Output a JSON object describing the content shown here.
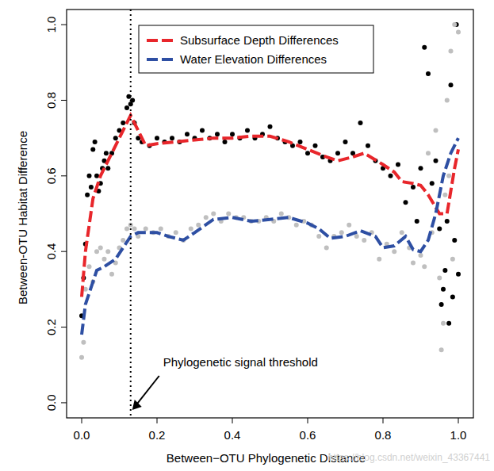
{
  "chart_data": {
    "type": "scatter",
    "xlabel": "Between−OTU Phylogenetic Distance",
    "ylabel": "Between-OTU Habitat Difference",
    "xlim": [
      -0.04,
      1.04
    ],
    "ylim": [
      -0.04,
      1.04
    ],
    "xticks": [
      {
        "value": 0,
        "label": "0.0"
      },
      0.2,
      0.4,
      0.6,
      0.8,
      {
        "value": 1,
        "label": "1.0"
      }
    ],
    "yticks": [
      {
        "value": 0,
        "label": "0.0"
      },
      0.2,
      0.4,
      0.6,
      0.8,
      {
        "value": 1,
        "label": "1.0"
      }
    ],
    "grid": false,
    "legend": "top",
    "annotations": [
      {
        "text": "Phylogenetic signal threshold",
        "x": 0.13
      }
    ],
    "watermark": "https://blog.csdn.net/weixin_43367441",
    "series": [
      {
        "type": "scatter",
        "marker": "circle",
        "color": "#000000",
        "x": [
          0.0,
          0.005,
          0.01,
          0.015,
          0.02,
          0.025,
          0.03,
          0.035,
          0.04,
          0.045,
          0.05,
          0.055,
          0.06,
          0.065,
          0.07,
          0.08,
          0.09,
          0.1,
          0.11,
          0.12,
          0.125,
          0.13,
          0.135,
          0.14,
          0.15,
          0.16,
          0.18,
          0.2,
          0.22,
          0.24,
          0.26,
          0.28,
          0.3,
          0.32,
          0.34,
          0.36,
          0.38,
          0.4,
          0.42,
          0.44,
          0.46,
          0.48,
          0.5,
          0.52,
          0.54,
          0.56,
          0.58,
          0.6,
          0.62,
          0.64,
          0.66,
          0.68,
          0.7,
          0.72,
          0.74,
          0.76,
          0.78,
          0.8,
          0.82,
          0.84,
          0.86,
          0.88,
          0.89,
          0.9,
          0.91,
          0.92,
          0.93,
          0.94,
          0.95,
          0.955,
          0.96,
          0.965,
          0.97,
          0.975,
          0.98,
          0.985,
          0.99,
          0.995,
          1.0
        ],
        "values": [
          0.23,
          0.33,
          0.42,
          0.55,
          0.6,
          0.57,
          0.67,
          0.69,
          0.6,
          0.56,
          0.58,
          0.62,
          0.64,
          0.66,
          0.62,
          0.66,
          0.7,
          0.72,
          0.74,
          0.78,
          0.81,
          0.79,
          0.8,
          0.74,
          0.7,
          0.69,
          0.68,
          0.7,
          0.69,
          0.7,
          0.69,
          0.71,
          0.7,
          0.72,
          0.7,
          0.71,
          0.69,
          0.71,
          0.7,
          0.72,
          0.7,
          0.71,
          0.73,
          0.7,
          0.69,
          0.68,
          0.69,
          0.66,
          0.68,
          0.65,
          0.64,
          0.66,
          0.69,
          0.66,
          0.74,
          0.68,
          0.64,
          0.62,
          0.6,
          0.63,
          0.53,
          0.57,
          0.48,
          0.62,
          0.94,
          0.87,
          0.58,
          0.64,
          0.46,
          0.26,
          0.3,
          0.35,
          0.48,
          0.21,
          0.84,
          0.28,
          0.43,
          1.0,
          0.34
        ]
      },
      {
        "type": "scatter",
        "marker": "circle",
        "color": "#bfbfbf",
        "x": [
          0.0,
          0.005,
          0.01,
          0.02,
          0.03,
          0.04,
          0.05,
          0.06,
          0.07,
          0.08,
          0.09,
          0.1,
          0.11,
          0.12,
          0.13,
          0.14,
          0.15,
          0.17,
          0.19,
          0.21,
          0.23,
          0.25,
          0.27,
          0.29,
          0.31,
          0.33,
          0.35,
          0.37,
          0.39,
          0.41,
          0.43,
          0.45,
          0.47,
          0.49,
          0.51,
          0.53,
          0.55,
          0.57,
          0.59,
          0.61,
          0.63,
          0.65,
          0.67,
          0.69,
          0.71,
          0.73,
          0.75,
          0.77,
          0.79,
          0.81,
          0.83,
          0.85,
          0.87,
          0.88,
          0.9,
          0.91,
          0.92,
          0.93,
          0.94,
          0.95,
          0.955,
          0.96,
          0.965,
          0.97,
          0.975,
          0.98,
          0.985,
          0.99,
          1.0
        ],
        "values": [
          0.12,
          0.16,
          0.3,
          0.36,
          0.32,
          0.4,
          0.41,
          0.38,
          0.4,
          0.34,
          0.37,
          0.41,
          0.43,
          0.46,
          0.47,
          0.46,
          0.44,
          0.46,
          0.45,
          0.46,
          0.44,
          0.45,
          0.43,
          0.46,
          0.47,
          0.49,
          0.5,
          0.48,
          0.5,
          0.49,
          0.49,
          0.48,
          0.48,
          0.49,
          0.48,
          0.5,
          0.49,
          0.47,
          0.48,
          0.47,
          0.44,
          0.41,
          0.44,
          0.45,
          0.47,
          0.44,
          0.43,
          0.45,
          0.38,
          0.42,
          0.4,
          0.45,
          0.41,
          0.37,
          0.39,
          0.36,
          0.66,
          0.45,
          0.72,
          0.33,
          0.14,
          0.21,
          0.55,
          0.8,
          0.6,
          0.93,
          0.38,
          1.0,
          0.98
        ]
      },
      {
        "name": "Subsurface Depth Differences",
        "type": "line",
        "line_style": "dashed",
        "color": "#e8262b",
        "x": [
          0.0,
          0.01,
          0.03,
          0.05,
          0.08,
          0.1,
          0.13,
          0.15,
          0.17,
          0.2,
          0.25,
          0.3,
          0.35,
          0.4,
          0.45,
          0.5,
          0.55,
          0.6,
          0.65,
          0.68,
          0.72,
          0.75,
          0.8,
          0.83,
          0.85,
          0.88,
          0.9,
          0.92,
          0.95,
          0.97,
          0.99,
          1.0
        ],
        "values": [
          0.28,
          0.4,
          0.54,
          0.6,
          0.66,
          0.7,
          0.76,
          0.72,
          0.68,
          0.685,
          0.69,
          0.695,
          0.7,
          0.7,
          0.705,
          0.705,
          0.69,
          0.67,
          0.65,
          0.64,
          0.65,
          0.66,
          0.63,
          0.61,
          0.585,
          0.58,
          0.575,
          0.55,
          0.5,
          0.5,
          0.62,
          0.67
        ]
      },
      {
        "name": "Water Elevation Differences",
        "type": "line",
        "line_style": "dashed",
        "color": "#2e4fa3",
        "x": [
          0.0,
          0.01,
          0.04,
          0.06,
          0.09,
          0.11,
          0.13,
          0.15,
          0.2,
          0.23,
          0.27,
          0.3,
          0.35,
          0.4,
          0.45,
          0.5,
          0.55,
          0.6,
          0.63,
          0.66,
          0.7,
          0.74,
          0.78,
          0.8,
          0.83,
          0.86,
          0.88,
          0.9,
          0.92,
          0.94,
          0.96,
          0.98,
          1.0
        ],
        "values": [
          0.18,
          0.26,
          0.35,
          0.36,
          0.38,
          0.41,
          0.44,
          0.45,
          0.45,
          0.44,
          0.43,
          0.45,
          0.485,
          0.49,
          0.48,
          0.485,
          0.49,
          0.475,
          0.46,
          0.435,
          0.44,
          0.455,
          0.44,
          0.41,
          0.415,
          0.44,
          0.405,
          0.4,
          0.43,
          0.5,
          0.6,
          0.66,
          0.7
        ]
      }
    ]
  }
}
